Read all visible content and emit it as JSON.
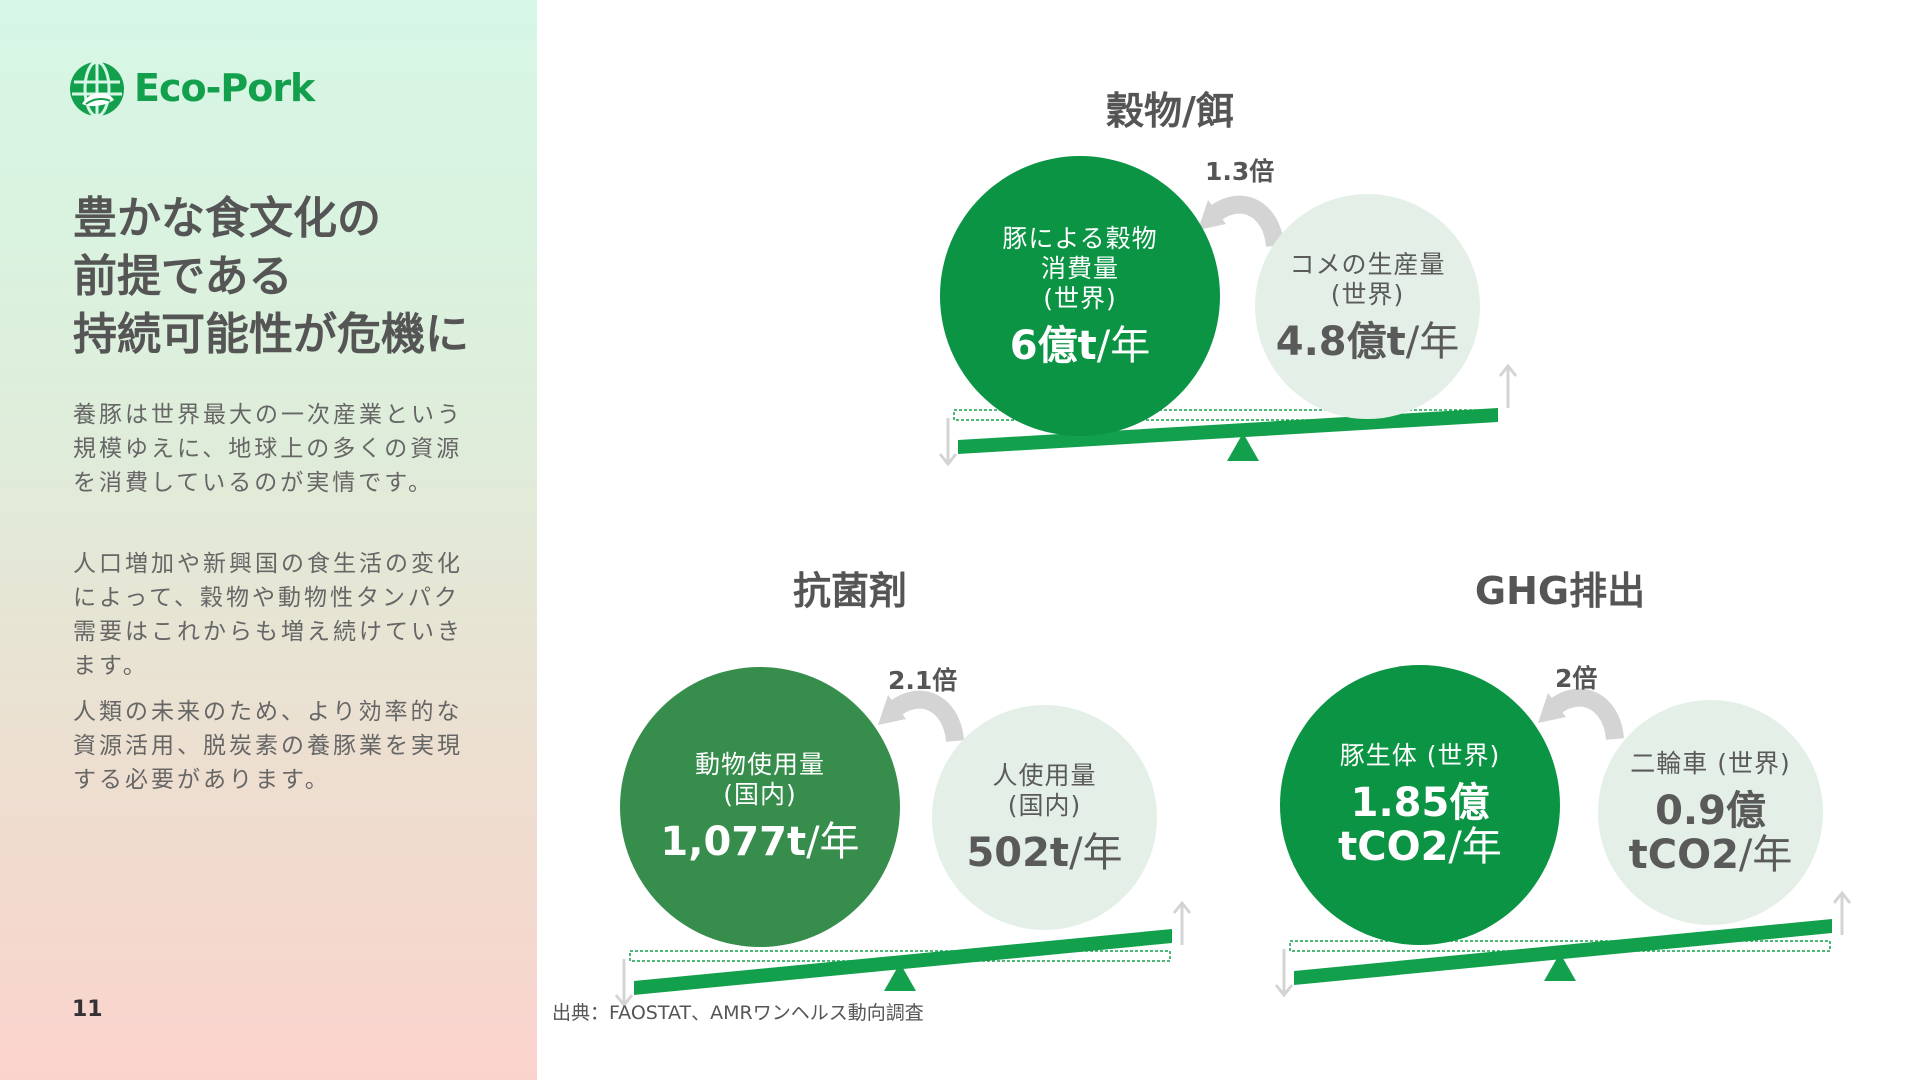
{
  "brand": {
    "name": "Eco-Pork",
    "color": "#12a04c",
    "icon": "globe-leaf-icon"
  },
  "sidebar": {
    "headline": [
      "豊かな食文化の",
      "前提である",
      "持続可能性が危機に"
    ],
    "paragraphs": [
      "養豚は世界最大の一次産業という規模ゆえに、地球上の多くの資源を消費しているのが実情です。",
      "人口増加や新興国の食生活の変化によって、穀物や動物性タンパク需要はこれからも増え続けていきます。",
      "人類の未来のため、より効率的な資源活用、脱炭素の養豚業を実現する必要があります。"
    ],
    "page_number": "11"
  },
  "source": "出典：FAOSTAT、AMRワンヘルス動向調査",
  "colors": {
    "dark_green": "#0a9444",
    "mid_green": "#368d4c",
    "light_circle": "#e4f0e7",
    "beam": "#12a04c",
    "arrow": "#d4d4d4"
  },
  "panels": {
    "grain": {
      "title": "穀物/餌",
      "ratio": "1.3倍",
      "left": {
        "label_lines": [
          "豚による穀物",
          "消費量",
          "(世界)"
        ],
        "value": "6億t",
        "unit": "/年"
      },
      "right": {
        "label_lines": [
          "コメの生産量",
          "(世界)"
        ],
        "value": "4.8億t",
        "unit": "/年"
      }
    },
    "antibiotics": {
      "title": "抗菌剤",
      "ratio": "2.1倍",
      "left": {
        "label_lines": [
          "動物使用量",
          "(国内)"
        ],
        "value": "1,077t",
        "unit": "/年"
      },
      "right": {
        "label_lines": [
          "人使用量",
          "(国内)"
        ],
        "value": "502t",
        "unit": "/年"
      }
    },
    "ghg": {
      "title": "GHG排出",
      "ratio": "2倍",
      "left": {
        "label_lines": [
          "豚生体 (世界)"
        ],
        "value_lines": [
          "1.85億",
          "tCO2"
        ],
        "unit": "/年"
      },
      "right": {
        "label_lines": [
          "二輪車 (世界)"
        ],
        "value_lines": [
          "0.9億",
          "tCO2"
        ],
        "unit": "/年"
      }
    }
  }
}
